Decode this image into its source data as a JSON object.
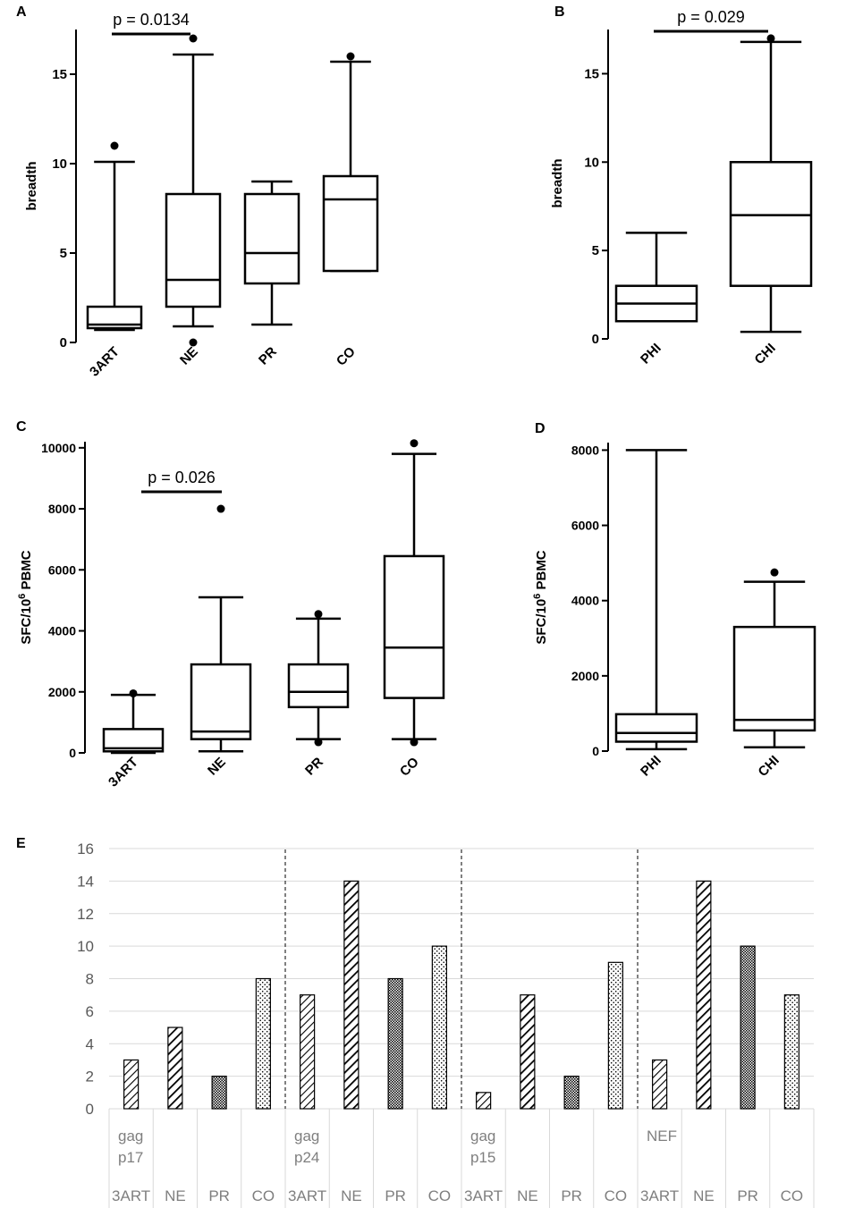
{
  "chart_data": [
    {
      "id": "A",
      "type": "boxplot",
      "panel_label": "A",
      "ylabel": "breadth",
      "ylim": [
        0,
        17.5
      ],
      "yticks": [
        "0",
        "5",
        "10",
        "15"
      ],
      "categories": [
        "3ART",
        "NE",
        "PR",
        "CO"
      ],
      "boxes": [
        {
          "min": 0.7,
          "q1": 0.8,
          "median": 1,
          "q3": 2,
          "max": 10.1,
          "outliers": [
            11
          ]
        },
        {
          "min": 0.9,
          "q1": 2,
          "median": 3.5,
          "q3": 8.3,
          "max": 16.1,
          "outliers": [
            17,
            0
          ]
        },
        {
          "min": 1,
          "q1": 3.3,
          "median": 5,
          "q3": 8.3,
          "max": 9,
          "outliers": []
        },
        {
          "min": 4,
          "q1": 4,
          "median": 8,
          "q3": 9.3,
          "max": 15.7,
          "outliers": [
            16
          ]
        }
      ],
      "annotation": {
        "text": "p = 0.0134",
        "from": 0,
        "to": 1,
        "y": 17.6
      }
    },
    {
      "id": "B",
      "type": "boxplot",
      "panel_label": "B",
      "ylabel": "breadth",
      "ylim": [
        0,
        17.5
      ],
      "yticks": [
        "0",
        "5",
        "10",
        "15"
      ],
      "categories": [
        "PHI",
        "CHI"
      ],
      "boxes": [
        {
          "min": 1,
          "q1": 1,
          "median": 2,
          "q3": 3,
          "max": 6,
          "outliers": []
        },
        {
          "min": 0.4,
          "q1": 3,
          "median": 7,
          "q3": 10,
          "max": 16.8,
          "outliers": [
            17
          ]
        }
      ],
      "annotation": {
        "text": "p = 0.029",
        "from": 0,
        "to": 1,
        "y": 17.6
      }
    },
    {
      "id": "C",
      "type": "boxplot",
      "panel_label": "C",
      "ylabel_main": "SFC/10",
      "ylabel_sup": "6",
      "ylabel_tail": " PBMC",
      "ylim": [
        0,
        10200
      ],
      "yticks": [
        "0",
        "2000",
        "4000",
        "6000",
        "8000",
        "10000"
      ],
      "categories": [
        "3ART",
        "NE",
        "PR",
        "CO"
      ],
      "boxes": [
        {
          "min": 0,
          "q1": 50,
          "median": 150,
          "q3": 780,
          "max": 1900,
          "outliers": [
            1950
          ]
        },
        {
          "min": 50,
          "q1": 450,
          "median": 700,
          "q3": 2900,
          "max": 5100,
          "outliers": [
            8000
          ]
        },
        {
          "min": 450,
          "q1": 1500,
          "median": 2000,
          "q3": 2900,
          "max": 4400,
          "outliers": [
            4550,
            350
          ]
        },
        {
          "min": 450,
          "q1": 1800,
          "median": 3450,
          "q3": 6450,
          "max": 9800,
          "outliers": [
            10150,
            350
          ]
        }
      ],
      "annotation": {
        "text": "p = 0.026",
        "from": 0.7,
        "to": 1,
        "y": 8550
      }
    },
    {
      "id": "D",
      "type": "boxplot",
      "panel_label": "D",
      "ylabel_main": "SFC/10",
      "ylabel_sup": "6",
      "ylabel_tail": " PBMC",
      "ylim": [
        0,
        8200
      ],
      "yticks": [
        "0",
        "2000",
        "4000",
        "6000",
        "8000"
      ],
      "categories": [
        "PHI",
        "CHI"
      ],
      "boxes": [
        {
          "min": 50,
          "q1": 250,
          "median": 480,
          "q3": 980,
          "max": 8000,
          "outliers": []
        },
        {
          "min": 100,
          "q1": 550,
          "median": 830,
          "q3": 3300,
          "max": 4500,
          "outliers": [
            4750
          ]
        }
      ]
    },
    {
      "id": "E",
      "type": "bar",
      "panel_label": "E",
      "ylim": [
        0,
        16
      ],
      "yticks": [
        "0",
        "2",
        "4",
        "6",
        "8",
        "10",
        "12",
        "14",
        "16"
      ],
      "groups": [
        {
          "label_lines": [
            "gag",
            "p17"
          ],
          "categories": [
            "3ART",
            "NE",
            "PR",
            "CO"
          ],
          "values": [
            3,
            5,
            2,
            8
          ]
        },
        {
          "label_lines": [
            "gag",
            "p24"
          ],
          "categories": [
            "3ART",
            "NE",
            "PR",
            "CO"
          ],
          "values": [
            7,
            14,
            8,
            10
          ]
        },
        {
          "label_lines": [
            "gag",
            "p15"
          ],
          "categories": [
            "3ART",
            "NE",
            "PR",
            "CO"
          ],
          "values": [
            1,
            7,
            2,
            9
          ]
        },
        {
          "label_lines": [
            "NEF"
          ],
          "categories": [
            "3ART",
            "NE",
            "PR",
            "CO"
          ],
          "values": [
            3,
            14,
            10,
            7
          ]
        }
      ],
      "bar_patterns": [
        "diagonal-hatch",
        "bold-diagonal-hatch",
        "crosshatch",
        "dots"
      ]
    }
  ],
  "colors": {
    "ink": "#000000",
    "grid": "#d9d9d9",
    "tick_text_E": "#595959",
    "label_text_E": "#7f7f7f"
  }
}
